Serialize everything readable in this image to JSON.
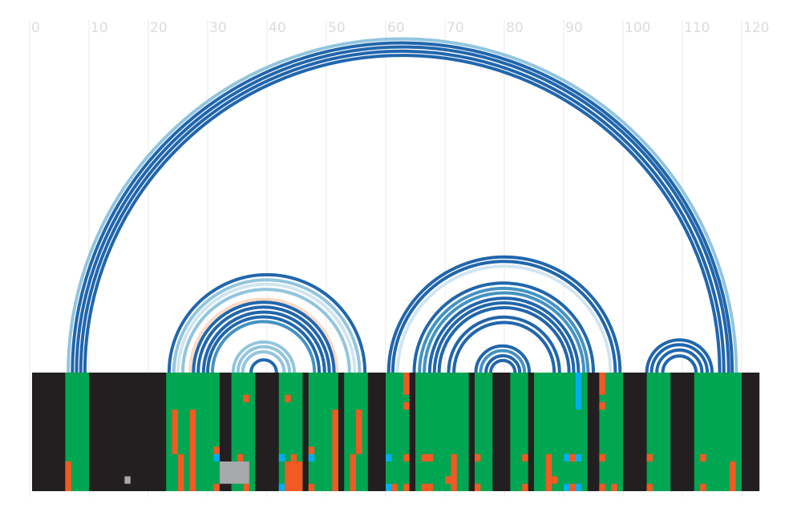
{
  "chart_data": {
    "type": "arc-diagram",
    "title": "",
    "xlabel": "",
    "ylabel": "",
    "xlim": [
      0,
      123
    ],
    "x_ticks": [
      0,
      10,
      20,
      30,
      40,
      50,
      60,
      70,
      80,
      90,
      100,
      110,
      120
    ],
    "grid": true,
    "colors": {
      "arc_dark": "#2166ac",
      "arc_mid": "#4393c3",
      "arc_light": "#92c5de",
      "arc_pale": "#d1e5f0",
      "arc_peach": "#fddbc7",
      "track_bg": "#231f20",
      "paired": "#00a651",
      "mismatch": "#f15a22",
      "blue_cell": "#00aeef",
      "gray_cell": "#a7a9ac"
    },
    "arcs": [
      {
        "x1": 6.5,
        "x2": 119.1,
        "color": "arc_light"
      },
      {
        "x1": 7.2,
        "x2": 118.4,
        "color": "arc_dark"
      },
      {
        "x1": 7.9,
        "x2": 117.8,
        "color": "arc_dark"
      },
      {
        "x1": 8.6,
        "x2": 117.0,
        "color": "arc_dark"
      },
      {
        "x1": 9.3,
        "x2": 116.3,
        "color": "arc_dark"
      },
      {
        "x1": 23.5,
        "x2": 56.5,
        "color": "arc_dark"
      },
      {
        "x1": 24.3,
        "x2": 55.6,
        "color": "arc_light"
      },
      {
        "x1": 25.0,
        "x2": 54.8,
        "color": "arc_pale"
      },
      {
        "x1": 25.8,
        "x2": 53.9,
        "color": "arc_light"
      },
      {
        "x1": 27.0,
        "x2": 51.8,
        "color": "arc_peach"
      },
      {
        "x1": 27.6,
        "x2": 51.3,
        "color": "arc_dark"
      },
      {
        "x1": 28.4,
        "x2": 50.5,
        "color": "arc_dark"
      },
      {
        "x1": 29.3,
        "x2": 49.7,
        "color": "arc_dark"
      },
      {
        "x1": 30.0,
        "x2": 48.8,
        "color": "arc_dark"
      },
      {
        "x1": 30.8,
        "x2": 48.0,
        "color": "arc_mid"
      },
      {
        "x1": 34.3,
        "x2": 44.6,
        "color": "arc_light"
      },
      {
        "x1": 35.1,
        "x2": 43.8,
        "color": "arc_light"
      },
      {
        "x1": 35.9,
        "x2": 42.9,
        "color": "arc_light"
      },
      {
        "x1": 37.3,
        "x2": 41.6,
        "color": "arc_dark"
      },
      {
        "x1": 60.5,
        "x2": 99.5,
        "color": "arc_dark"
      },
      {
        "x1": 61.2,
        "x2": 98.7,
        "color": "arc_dark"
      },
      {
        "x1": 62.0,
        "x2": 97.9,
        "color": "arc_pale"
      },
      {
        "x1": 64.8,
        "x2": 95.0,
        "color": "arc_dark"
      },
      {
        "x1": 65.7,
        "x2": 94.1,
        "color": "arc_mid"
      },
      {
        "x1": 66.5,
        "x2": 93.4,
        "color": "arc_mid"
      },
      {
        "x1": 67.4,
        "x2": 92.5,
        "color": "arc_dark"
      },
      {
        "x1": 68.2,
        "x2": 91.7,
        "color": "arc_dark"
      },
      {
        "x1": 69.0,
        "x2": 90.9,
        "color": "arc_dark"
      },
      {
        "x1": 70.6,
        "x2": 89.3,
        "color": "arc_dark"
      },
      {
        "x1": 71.5,
        "x2": 88.4,
        "color": "arc_dark"
      },
      {
        "x1": 75.2,
        "x2": 84.2,
        "color": "arc_dark"
      },
      {
        "x1": 76.0,
        "x2": 83.4,
        "color": "arc_mid"
      },
      {
        "x1": 76.9,
        "x2": 82.6,
        "color": "arc_dark"
      },
      {
        "x1": 77.7,
        "x2": 81.8,
        "color": "arc_dark"
      },
      {
        "x1": 104.0,
        "x2": 115.0,
        "color": "arc_dark"
      },
      {
        "x1": 104.8,
        "x2": 114.2,
        "color": "arc_dark"
      },
      {
        "x1": 105.7,
        "x2": 113.3,
        "color": "arc_dark"
      },
      {
        "x1": 106.7,
        "x2": 112.3,
        "color": "arc_dark"
      }
    ],
    "track": {
      "rows": 16,
      "background": "track_bg",
      "paired_columns": [
        [
          6,
          10
        ],
        [
          23,
          32
        ],
        [
          34,
          38
        ],
        [
          42,
          46
        ],
        [
          47,
          52
        ],
        [
          53,
          57
        ],
        [
          60,
          64
        ],
        [
          65,
          74
        ],
        [
          75,
          78
        ],
        [
          81,
          84
        ],
        [
          85,
          94
        ],
        [
          96,
          100
        ],
        [
          104,
          108
        ],
        [
          112,
          120
        ]
      ],
      "cells": [
        {
          "x": 63,
          "y": 0,
          "w": 1,
          "h": 3,
          "color": "mismatch"
        },
        {
          "x": 92,
          "y": 0,
          "w": 1,
          "h": 5,
          "color": "blue_cell"
        },
        {
          "x": 96,
          "y": 0,
          "w": 1,
          "h": 3,
          "color": "mismatch"
        },
        {
          "x": 36,
          "y": 3,
          "w": 1,
          "h": 1,
          "color": "mismatch"
        },
        {
          "x": 43,
          "y": 3,
          "w": 1,
          "h": 1,
          "color": "mismatch"
        },
        {
          "x": 63,
          "y": 4,
          "w": 1,
          "h": 1,
          "color": "mismatch"
        },
        {
          "x": 96,
          "y": 4,
          "w": 1,
          "h": 1,
          "color": "mismatch"
        },
        {
          "x": 24,
          "y": 5,
          "w": 1,
          "h": 6,
          "color": "mismatch"
        },
        {
          "x": 27,
          "y": 5,
          "w": 1,
          "h": 11,
          "color": "mismatch"
        },
        {
          "x": 51,
          "y": 5,
          "w": 1,
          "h": 11,
          "color": "mismatch"
        },
        {
          "x": 55,
          "y": 5,
          "w": 1,
          "h": 6,
          "color": "mismatch"
        },
        {
          "x": 31,
          "y": 10,
          "w": 1,
          "h": 1,
          "color": "mismatch"
        },
        {
          "x": 47,
          "y": 10,
          "w": 1,
          "h": 1,
          "color": "mismatch"
        },
        {
          "x": 25,
          "y": 11,
          "w": 1,
          "h": 5,
          "color": "mismatch"
        },
        {
          "x": 31,
          "y": 11,
          "w": 1,
          "h": 1,
          "color": "blue_cell"
        },
        {
          "x": 35,
          "y": 11,
          "w": 1,
          "h": 2,
          "color": "mismatch"
        },
        {
          "x": 42,
          "y": 11,
          "w": 1,
          "h": 1,
          "color": "blue_cell"
        },
        {
          "x": 44,
          "y": 11,
          "w": 1,
          "h": 1,
          "color": "mismatch"
        },
        {
          "x": 47,
          "y": 11,
          "w": 1,
          "h": 1,
          "color": "blue_cell"
        },
        {
          "x": 54,
          "y": 11,
          "w": 1,
          "h": 5,
          "color": "mismatch"
        },
        {
          "x": 60,
          "y": 11,
          "w": 1,
          "h": 1,
          "color": "blue_cell"
        },
        {
          "x": 63,
          "y": 11,
          "w": 1,
          "h": 1,
          "color": "mismatch"
        },
        {
          "x": 66,
          "y": 11,
          "w": 2,
          "h": 1,
          "color": "mismatch"
        },
        {
          "x": 71,
          "y": 11,
          "w": 1,
          "h": 5,
          "color": "mismatch"
        },
        {
          "x": 75,
          "y": 11,
          "w": 1,
          "h": 1,
          "color": "mismatch"
        },
        {
          "x": 83,
          "y": 11,
          "w": 1,
          "h": 1,
          "color": "mismatch"
        },
        {
          "x": 87,
          "y": 11,
          "w": 1,
          "h": 5,
          "color": "mismatch"
        },
        {
          "x": 90,
          "y": 11,
          "w": 1,
          "h": 1,
          "color": "blue_cell"
        },
        {
          "x": 91,
          "y": 11,
          "w": 2,
          "h": 1,
          "color": "mismatch"
        },
        {
          "x": 92,
          "y": 11,
          "w": 1,
          "h": 1,
          "color": "blue_cell"
        },
        {
          "x": 96,
          "y": 11,
          "w": 1,
          "h": 1,
          "color": "mismatch"
        },
        {
          "x": 104,
          "y": 11,
          "w": 1,
          "h": 1,
          "color": "mismatch"
        },
        {
          "x": 113,
          "y": 11,
          "w": 1,
          "h": 1,
          "color": "mismatch"
        },
        {
          "x": 6,
          "y": 12,
          "w": 1,
          "h": 4,
          "color": "mismatch"
        },
        {
          "x": 32,
          "y": 12,
          "w": 5,
          "h": 3,
          "color": "gray_cell"
        },
        {
          "x": 43,
          "y": 12,
          "w": 3,
          "h": 4,
          "color": "mismatch"
        },
        {
          "x": 118,
          "y": 12,
          "w": 1,
          "h": 4,
          "color": "mismatch"
        },
        {
          "x": 70,
          "y": 14,
          "w": 1,
          "h": 1,
          "color": "mismatch"
        },
        {
          "x": 88,
          "y": 14,
          "w": 1,
          "h": 1,
          "color": "mismatch"
        },
        {
          "x": 16,
          "y": 14,
          "w": 1,
          "h": 1,
          "color": "gray_cell"
        },
        {
          "x": 31,
          "y": 15,
          "w": 1,
          "h": 1,
          "color": "mismatch"
        },
        {
          "x": 36,
          "y": 15,
          "w": 1,
          "h": 1,
          "color": "mismatch"
        },
        {
          "x": 42,
          "y": 15,
          "w": 1,
          "h": 1,
          "color": "blue_cell"
        },
        {
          "x": 47,
          "y": 15,
          "w": 1,
          "h": 1,
          "color": "mismatch"
        },
        {
          "x": 60,
          "y": 15,
          "w": 1,
          "h": 1,
          "color": "blue_cell"
        },
        {
          "x": 61,
          "y": 15,
          "w": 1,
          "h": 1,
          "color": "mismatch"
        },
        {
          "x": 63,
          "y": 15,
          "w": 1,
          "h": 1,
          "color": "mismatch"
        },
        {
          "x": 66,
          "y": 15,
          "w": 2,
          "h": 1,
          "color": "mismatch"
        },
        {
          "x": 75,
          "y": 15,
          "w": 1,
          "h": 1,
          "color": "mismatch"
        },
        {
          "x": 83,
          "y": 15,
          "w": 1,
          "h": 1,
          "color": "mismatch"
        },
        {
          "x": 90,
          "y": 15,
          "w": 1,
          "h": 1,
          "color": "blue_cell"
        },
        {
          "x": 91,
          "y": 15,
          "w": 2,
          "h": 1,
          "color": "mismatch"
        },
        {
          "x": 92,
          "y": 15,
          "w": 1,
          "h": 1,
          "color": "blue_cell"
        },
        {
          "x": 96,
          "y": 15,
          "w": 1,
          "h": 1,
          "color": "mismatch"
        },
        {
          "x": 98,
          "y": 15,
          "w": 1,
          "h": 1,
          "color": "mismatch"
        },
        {
          "x": 104,
          "y": 15,
          "w": 1,
          "h": 1,
          "color": "mismatch"
        },
        {
          "x": 113,
          "y": 15,
          "w": 1,
          "h": 1,
          "color": "mismatch"
        }
      ]
    }
  }
}
